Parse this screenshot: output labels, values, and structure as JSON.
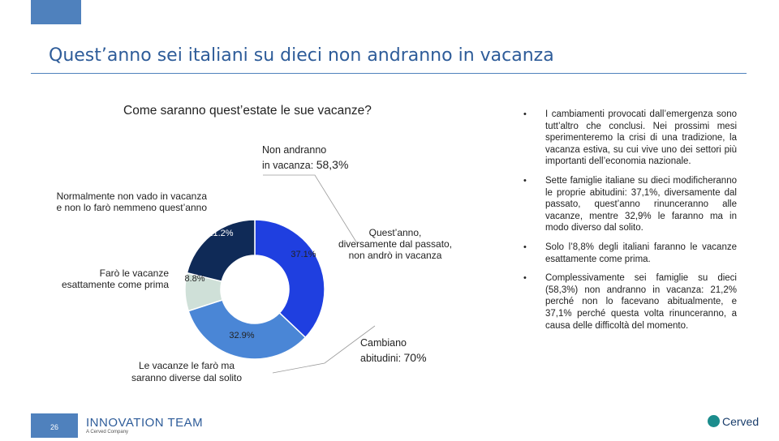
{
  "slide": {
    "title": "Quest’anno sei italiani su dieci non andranno in vacanza",
    "subtitle": "Come saranno quest’estate le sue vacanze?",
    "page_number": "26"
  },
  "callouts": {
    "non_andranno_line1": "Non andranno",
    "non_andranno_line2": "in vacanza: ",
    "non_andranno_value": "58,3%",
    "cambiano_line1": "Cambiano",
    "cambiano_line2": "abitudini: ",
    "cambiano_value": "70%"
  },
  "chart_data": {
    "type": "pie",
    "donut": true,
    "categories": [
      "Quest’anno, diversamente dal passato, non andrò in vacanza",
      "Le vacanze le farò ma saranno diverse dal solito",
      "Farò le vacanze esattamente come prima",
      "Normalmente non vado in vacanza e non lo farò nemmeno quest’anno"
    ],
    "values": [
      37.1,
      32.9,
      8.8,
      21.2
    ],
    "value_labels": [
      "37.1%",
      "32.9%",
      "8.8%",
      "21.2%"
    ],
    "colors": [
      "#1f3fe0",
      "#4a86d6",
      "#cfe0d8",
      "#0f2a57"
    ],
    "label_lines": {
      "s0": [
        "Quest’anno,",
        "diversamente dal passato,",
        "non andrò in vacanza"
      ],
      "s1": [
        "Le vacanze le farò ma",
        "saranno diverse dal solito"
      ],
      "s2": [
        "Farò le vacanze",
        "esattamente come prima"
      ],
      "s3": [
        "Normalmente non vado in vacanza",
        "e non lo farò nemmeno quest’anno"
      ]
    }
  },
  "bullets": [
    "I cambiamenti provocati dall’emergenza sono tutt’altro che conclusi. Nei prossimi mesi sperimenteremo la crisi di una tradizione, la vacanza estiva, su cui vive uno dei settori più importanti dell’economia nazionale.",
    "Sette famiglie italiane su dieci modificheranno le proprie abitudini: 37,1%, diversamente dal passato, quest’anno rinunceranno alle vacanze, mentre 32,9% le faranno ma in modo diverso dal solito.",
    "Solo l’8,8% degli italiani faranno le vacanze esattamente come prima.",
    "Complessivamente sei famiglie su dieci (58,3%) non andranno in vacanza: 21,2% perché non lo facevano abitualmente, e 37,1% perché questa volta rinunceranno, a causa delle difficoltà del momento."
  ],
  "footer": {
    "brand": "INNOVATION TEAM",
    "brand_sub": "A Cerved Company",
    "partner": "Cerved"
  }
}
